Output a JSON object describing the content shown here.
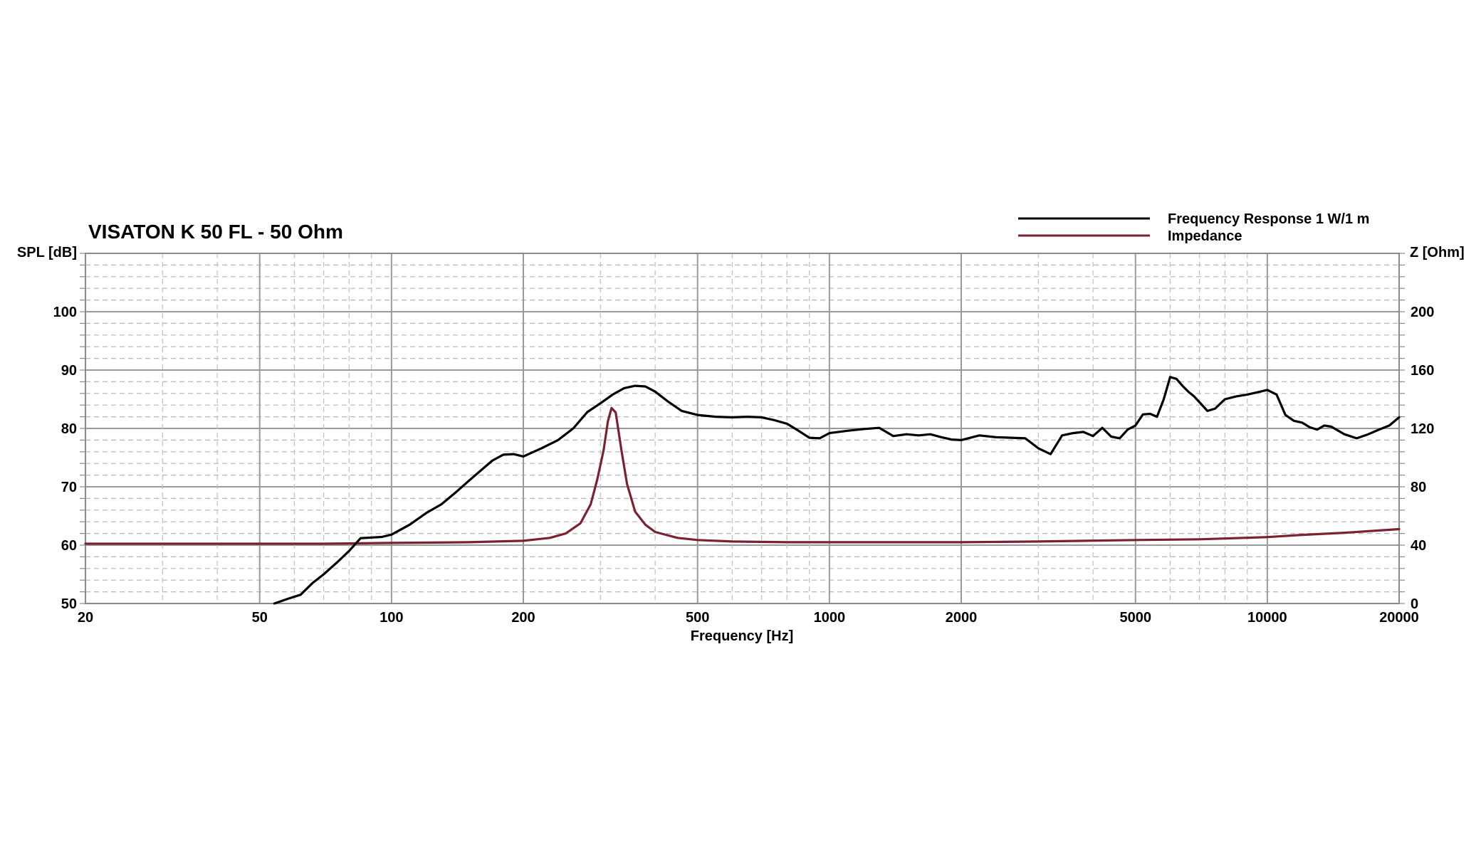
{
  "chart_data": {
    "type": "line",
    "title": "VISATON K 50 FL - 50 Ohm",
    "xlabel": "Frequency [Hz]",
    "ylabel_left": "SPL [dB]",
    "ylabel_right": "Z [Ohm]",
    "x_scale": "log",
    "xlim": [
      20,
      20000
    ],
    "ylim_left": [
      50,
      110
    ],
    "ylim_right": [
      0,
      240
    ],
    "x_ticks": [
      20,
      50,
      100,
      200,
      500,
      1000,
      2000,
      5000,
      10000,
      20000
    ],
    "x_tick_labels": [
      "20",
      "50",
      "100",
      "200",
      "500",
      "1000",
      "2000",
      "5000",
      "10000",
      "20000"
    ],
    "y_ticks_left": [
      50,
      60,
      70,
      80,
      90,
      100
    ],
    "y_tick_labels_left": [
      "50",
      "60",
      "70",
      "80",
      "90",
      "100"
    ],
    "y_ticks_right": [
      0,
      40,
      80,
      120,
      160,
      200
    ],
    "y_tick_labels_right": [
      "0",
      "40",
      "80",
      "120",
      "160",
      "200"
    ],
    "grid": true,
    "legend_position": "top-right",
    "series": [
      {
        "name": "Frequency Response 1 W/1 m",
        "axis": "left",
        "color": "#000000",
        "x": [
          54,
          58,
          62,
          66,
          70,
          75,
          80,
          85,
          90,
          95,
          100,
          110,
          120,
          130,
          140,
          150,
          160,
          170,
          180,
          190,
          200,
          220,
          240,
          260,
          280,
          300,
          320,
          340,
          360,
          380,
          400,
          430,
          460,
          500,
          550,
          600,
          650,
          700,
          750,
          800,
          850,
          900,
          950,
          1000,
          1100,
          1200,
          1300,
          1400,
          1500,
          1600,
          1700,
          1800,
          1900,
          2000,
          2200,
          2400,
          2600,
          2800,
          3000,
          3200,
          3400,
          3600,
          3800,
          4000,
          4200,
          4400,
          4600,
          4800,
          5000,
          5200,
          5400,
          5600,
          5800,
          6000,
          6200,
          6400,
          6600,
          6800,
          7000,
          7300,
          7600,
          8000,
          8500,
          9000,
          9500,
          10000,
          10500,
          11000,
          11500,
          12000,
          12500,
          13000,
          13500,
          14000,
          15000,
          16000,
          17000,
          18000,
          19000,
          20000
        ],
        "values": [
          50.0,
          50.8,
          51.5,
          53.5,
          55.0,
          57.0,
          59.0,
          61.2,
          61.3,
          61.4,
          61.8,
          63.5,
          65.5,
          67.0,
          69.0,
          71.0,
          72.8,
          74.5,
          75.5,
          75.6,
          75.2,
          76.6,
          78.0,
          80.0,
          82.8,
          84.3,
          85.8,
          86.9,
          87.3,
          87.2,
          86.3,
          84.5,
          83.0,
          82.3,
          82.0,
          81.9,
          82.0,
          81.9,
          81.4,
          80.8,
          79.6,
          78.4,
          78.3,
          79.2,
          79.6,
          79.9,
          80.1,
          78.7,
          79.0,
          78.8,
          79.0,
          78.5,
          78.1,
          78.0,
          78.8,
          78.5,
          78.4,
          78.3,
          76.6,
          75.6,
          78.8,
          79.2,
          79.4,
          78.7,
          80.1,
          78.6,
          78.3,
          79.8,
          80.5,
          82.4,
          82.5,
          82.0,
          85.0,
          88.8,
          88.5,
          87.3,
          86.3,
          85.5,
          84.5,
          83.0,
          83.4,
          85.0,
          85.5,
          85.8,
          86.2,
          86.6,
          85.8,
          82.3,
          81.3,
          81.0,
          80.2,
          79.8,
          80.5,
          80.3,
          79.0,
          78.3,
          79.0,
          79.8,
          80.5,
          81.9
        ]
      },
      {
        "name": "Impedance",
        "axis": "right",
        "color": "#7a2231",
        "x": [
          20,
          30,
          50,
          70,
          100,
          150,
          200,
          230,
          250,
          270,
          285,
          295,
          305,
          312,
          318,
          325,
          335,
          345,
          360,
          380,
          400,
          450,
          500,
          600,
          800,
          1000,
          1500,
          2000,
          3000,
          5000,
          7000,
          10000,
          12000,
          15000,
          20000
        ],
        "values": [
          41.0,
          41.0,
          41.0,
          41.0,
          41.5,
          42.0,
          43.0,
          45.0,
          48.0,
          55.0,
          68.0,
          85.0,
          105.0,
          125.0,
          134.0,
          131.0,
          105.0,
          82.0,
          63.0,
          54.0,
          49.0,
          45.0,
          43.5,
          42.5,
          42.0,
          42.0,
          42.0,
          42.0,
          42.5,
          43.5,
          44.0,
          45.5,
          47.0,
          48.5,
          51.0
        ]
      }
    ]
  }
}
